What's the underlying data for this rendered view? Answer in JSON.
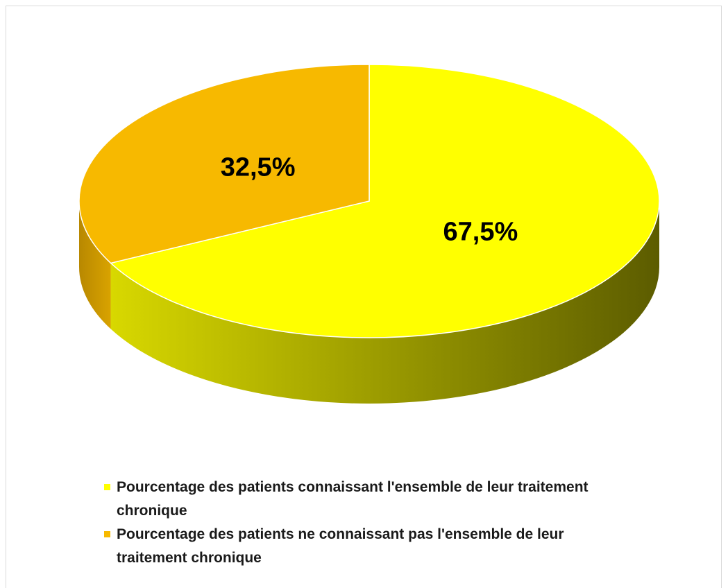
{
  "chart_data": {
    "type": "pie",
    "categories": [
      "Pourcentage des patients connaissant  l'ensemble de leur traitement chronique",
      "Pourcentage des patients ne connaissant pas l'ensemble de leur traitement chronique"
    ],
    "values": [
      67.5,
      32.5
    ],
    "value_labels": [
      "67,5%",
      "32,5%"
    ],
    "colors": [
      "#ffff00",
      "#f7b900"
    ],
    "legend": "bottom"
  }
}
